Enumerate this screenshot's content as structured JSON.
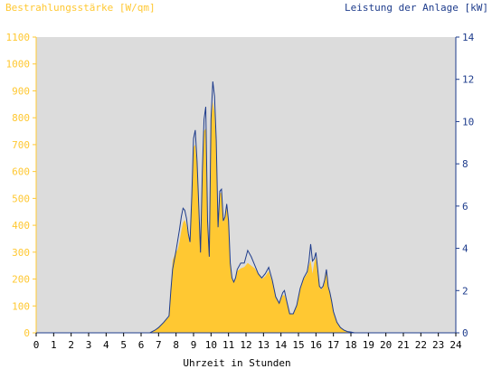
{
  "chart_data": {
    "type": "area",
    "left_axis_title": "Bestrahlungsstärke [W/qm]",
    "right_axis_title": "Leistung der Anlage [kW]",
    "xlabel": "Uhrzeit in Stunden",
    "xlim": [
      0,
      24
    ],
    "ylim_left": [
      0,
      1100
    ],
    "ylim_right": [
      0,
      14
    ],
    "x_ticks": [
      "0",
      "1",
      "2",
      "3",
      "4",
      "5",
      "6",
      "7",
      "8",
      "9",
      "10",
      "11",
      "12",
      "13",
      "14",
      "15",
      "16",
      "17",
      "18",
      "19",
      "20",
      "21",
      "22",
      "23",
      "24"
    ],
    "y_left_ticks": [
      "0",
      "100",
      "200",
      "300",
      "400",
      "500",
      "600",
      "700",
      "800",
      "900",
      "1000",
      "1100"
    ],
    "y_right_ticks": [
      "0",
      "2",
      "4",
      "6",
      "8",
      "10",
      "12",
      "14"
    ],
    "grid": false,
    "series": [
      {
        "name": "Bestrahlungsstärke [W/qm]",
        "axis": "left",
        "style": "area",
        "color": "#ffc832",
        "x": [
          0,
          6.5,
          6.8,
          7.0,
          7.3,
          7.6,
          7.7,
          7.8,
          8.0,
          8.1,
          8.2,
          8.3,
          8.4,
          8.5,
          8.6,
          8.7,
          8.8,
          8.9,
          9.0,
          9.1,
          9.2,
          9.3,
          9.4,
          9.5,
          9.6,
          9.7,
          9.8,
          9.9,
          10.0,
          10.1,
          10.2,
          10.3,
          10.4,
          10.5,
          10.6,
          10.7,
          10.8,
          10.9,
          11.0,
          11.1,
          11.2,
          11.3,
          11.4,
          11.5,
          11.7,
          11.9,
          12.1,
          12.3,
          12.5,
          12.7,
          12.9,
          13.1,
          13.3,
          13.5,
          13.7,
          13.9,
          14.1,
          14.2,
          14.3,
          14.5,
          14.7,
          14.9,
          15.1,
          15.3,
          15.5,
          15.6,
          15.7,
          15.8,
          15.9,
          16.0,
          16.1,
          16.2,
          16.3,
          16.4,
          16.5,
          16.6,
          16.7,
          16.8,
          16.9,
          17.0,
          17.2,
          17.4,
          17.6,
          17.8,
          18.0,
          18.2,
          18.4,
          18.6,
          24
        ],
        "y": [
          0,
          0,
          10,
          20,
          40,
          60,
          150,
          270,
          300,
          310,
          340,
          380,
          410,
          420,
          400,
          360,
          330,
          520,
          690,
          700,
          620,
          470,
          300,
          590,
          750,
          760,
          410,
          270,
          790,
          860,
          820,
          690,
          380,
          520,
          520,
          410,
          430,
          470,
          420,
          250,
          200,
          190,
          200,
          230,
          240,
          245,
          260,
          250,
          240,
          220,
          200,
          210,
          230,
          190,
          130,
          110,
          140,
          140,
          120,
          70,
          70,
          100,
          160,
          200,
          220,
          250,
          270,
          220,
          260,
          280,
          220,
          170,
          160,
          170,
          190,
          230,
          170,
          150,
          120,
          80,
          40,
          20,
          10,
          5,
          3,
          0,
          0,
          0,
          0
        ]
      },
      {
        "name": "Leistung der Anlage [kW]",
        "axis": "right",
        "style": "line",
        "color": "#1e3c8c",
        "x": [
          0,
          6.5,
          6.8,
          7.0,
          7.3,
          7.6,
          7.7,
          7.8,
          8.0,
          8.1,
          8.2,
          8.3,
          8.4,
          8.5,
          8.6,
          8.7,
          8.8,
          8.9,
          9.0,
          9.1,
          9.2,
          9.3,
          9.4,
          9.5,
          9.6,
          9.7,
          9.8,
          9.9,
          10.0,
          10.1,
          10.2,
          10.3,
          10.4,
          10.5,
          10.6,
          10.7,
          10.8,
          10.9,
          11.0,
          11.1,
          11.2,
          11.3,
          11.4,
          11.5,
          11.7,
          11.9,
          12.1,
          12.3,
          12.5,
          12.7,
          12.9,
          13.1,
          13.3,
          13.5,
          13.7,
          13.9,
          14.1,
          14.2,
          14.3,
          14.5,
          14.7,
          14.9,
          15.1,
          15.3,
          15.5,
          15.6,
          15.7,
          15.8,
          15.9,
          16.0,
          16.1,
          16.2,
          16.3,
          16.4,
          16.5,
          16.6,
          16.7,
          16.8,
          16.9,
          17.0,
          17.2,
          17.4,
          17.6,
          17.8,
          18.0,
          18.2,
          18.4,
          18.6,
          24
        ],
        "y": [
          0,
          0,
          0.13,
          0.25,
          0.5,
          0.8,
          2.0,
          3.0,
          3.9,
          4.4,
          4.9,
          5.5,
          5.9,
          5.8,
          5.4,
          4.7,
          4.3,
          6.5,
          9.2,
          9.6,
          8.1,
          6.0,
          3.8,
          7.6,
          10.1,
          10.7,
          5.3,
          3.6,
          10.1,
          11.9,
          11.2,
          9.1,
          5.0,
          6.7,
          6.8,
          5.3,
          5.5,
          6.1,
          5.3,
          3.3,
          2.6,
          2.4,
          2.6,
          3.0,
          3.3,
          3.3,
          3.9,
          3.6,
          3.2,
          2.8,
          2.6,
          2.8,
          3.1,
          2.5,
          1.7,
          1.4,
          1.9,
          2.0,
          1.6,
          0.9,
          0.9,
          1.3,
          2.1,
          2.6,
          2.9,
          3.4,
          4.2,
          3.4,
          3.5,
          3.8,
          3.0,
          2.2,
          2.1,
          2.2,
          2.5,
          3.0,
          2.2,
          1.9,
          1.5,
          1.0,
          0.5,
          0.25,
          0.13,
          0.06,
          0.04,
          0,
          0,
          0,
          0
        ]
      }
    ]
  },
  "colors": {
    "plot_background": "#dcdcdc",
    "left_axis": "#ffc832",
    "right_axis": "#1e3c8c",
    "x_axis": "#000000"
  }
}
